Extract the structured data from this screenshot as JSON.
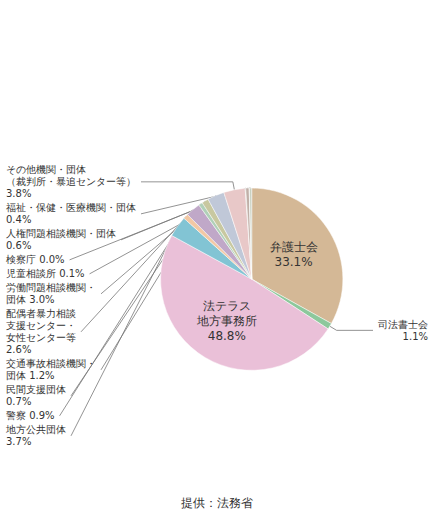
{
  "chart_data": {
    "type": "pie",
    "categories": [
      "弁護士会\n33.1%",
      "司法書士会\n1.1%",
      "法テラス\n地方事務所\n48.8%",
      "地方公共団体\n3.7%",
      "警察 0.9%",
      "配偶者暴力相談\n支援センター・\n女性センター等\n2.6%",
      "民間支援団体\n0.7%",
      "交通事故相談機関・\n団体 1.2%",
      "労働問題相談機関・\n団体 3.0%",
      "その他機関・団体\n（裁判所・暴追センター等）\n3.8%",
      "児童相談所 0.1%",
      "人権問題相談機関・団体\n0.6%",
      "検察庁 0.0%",
      "福祉・保健・医療機関・団体\n0.4%"
    ],
    "values": [
      33.1,
      1.1,
      48.8,
      3.7,
      0.9,
      2.6,
      0.7,
      1.2,
      3.0,
      3.8,
      0.1,
      0.6,
      0.05,
      0.4
    ],
    "colors": [
      "#D4B896",
      "#8DC89C",
      "#EAC0D8",
      "#82C4D4",
      "#F2C8A4",
      "#C0A8C8",
      "#B0D0B8",
      "#C8C8A0",
      "#C0C8D8",
      "#E8C8C8",
      "#C8B8A8",
      "#C0B0A8",
      "#B8C0B8",
      "#C8D0C0"
    ],
    "data_labels": true,
    "annotations": [
      "提供：法務省"
    ]
  }
}
